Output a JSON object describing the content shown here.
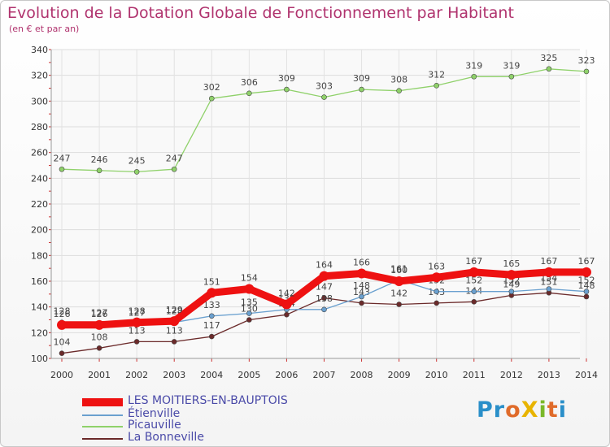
{
  "title": "Evolution de la Dotation Globale de Fonctionnement par Habitant",
  "subtitle": "(en € et par an)",
  "logo": {
    "text": "ProXiti",
    "letters": [
      "P",
      "r",
      "o",
      "X",
      "i",
      "t",
      "i"
    ],
    "colors": [
      "#2a8fc9",
      "#2a8fc9",
      "#e06b2a",
      "#e8b400",
      "#7ab829",
      "#e06b2a",
      "#2a8fc9"
    ]
  },
  "chart_data": {
    "type": "line",
    "title": "Evolution de la Dotation Globale de Fonctionnement par Habitant",
    "xlabel": "",
    "ylabel": "(en € et par an)",
    "ylim": [
      100,
      340
    ],
    "yticks": [
      100,
      120,
      140,
      160,
      180,
      200,
      220,
      240,
      260,
      280,
      300,
      320,
      340
    ],
    "grid": true,
    "legend_position": "bottom-left",
    "x": [
      "2000",
      "2001",
      "2002",
      "2003",
      "2004",
      "2005",
      "2006",
      "2007",
      "2008",
      "2009",
      "2010",
      "2011",
      "2012",
      "2013",
      "2014"
    ],
    "series": [
      {
        "name": "LES MOITIERS-EN-BAUPTOIS",
        "color": "#ee1111",
        "values": [
          126,
          126,
          128,
          129,
          151,
          154,
          142,
          164,
          166,
          160,
          163,
          167,
          165,
          167,
          167
        ]
      },
      {
        "name": "Étienville",
        "color": "#6aa0cf",
        "values": [
          128,
          127,
          127,
          128,
          133,
          135,
          138,
          138,
          148,
          161,
          152,
          152,
          152,
          154,
          152
        ]
      },
      {
        "name": "Picauville",
        "color": "#8fd16a",
        "values": [
          247,
          246,
          245,
          247,
          302,
          306,
          309,
          303,
          309,
          308,
          312,
          319,
          319,
          325,
          323
        ]
      },
      {
        "name": "La Bonneville",
        "color": "#6b2a2a",
        "values": [
          104,
          108,
          113,
          113,
          117,
          130,
          134,
          147,
          143,
          142,
          143,
          144,
          149,
          151,
          148
        ]
      }
    ]
  }
}
